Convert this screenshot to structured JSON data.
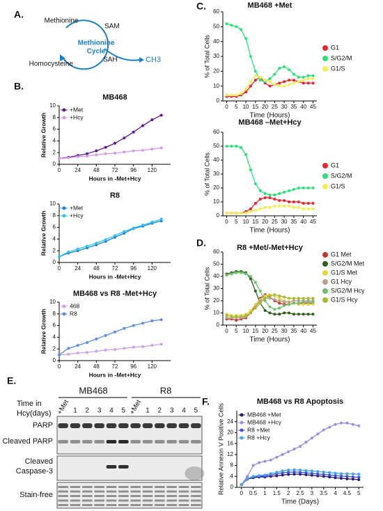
{
  "panel_labels": [
    "A.",
    "B.",
    "C.",
    "D.",
    "E.",
    "F."
  ],
  "diagram": {
    "nodes": [
      "Methionine",
      "SAM",
      "SAH",
      "Homocysteine"
    ],
    "center": [
      "Methionine",
      "Cycle"
    ],
    "output": "CH3"
  },
  "blot": {
    "axis_label": [
      "Time in",
      "Hcy(days)"
    ],
    "groups": [
      "MB468",
      "R8"
    ],
    "lanes": [
      "+Met",
      "1",
      "2",
      "3",
      "4",
      "5",
      "+Met",
      "1",
      "2",
      "3",
      "4",
      "5"
    ],
    "rows": [
      "PARP",
      "Cleaved PARP",
      "Cleaved",
      "Caspase-3",
      "Stain-free"
    ]
  },
  "chart_data": [
    {
      "type": "line",
      "title": "MB468",
      "x_label": "Hours in -Met+Hcy",
      "y_label": "Relative Growth",
      "x": [
        0,
        12,
        24,
        36,
        48,
        60,
        72,
        84,
        96,
        108,
        120,
        132
      ],
      "series": [
        {
          "name": "+Met",
          "color": "#5b1a8b",
          "values": [
            1,
            1.2,
            1.5,
            1.8,
            2.3,
            2.9,
            3.6,
            4.5,
            5.5,
            6.6,
            7.6,
            8.4
          ]
        },
        {
          "name": "+Hcy",
          "color": "#d39be9",
          "values": [
            1,
            1.1,
            1.3,
            1.4,
            1.6,
            1.8,
            1.9,
            2.1,
            2.3,
            2.4,
            2.6,
            2.8
          ]
        }
      ],
      "xlim": [
        0,
        144
      ],
      "ylim": [
        0,
        10
      ],
      "xticks": [
        0,
        24,
        48,
        72,
        96,
        120
      ],
      "yticks": [
        0,
        2,
        4,
        6,
        8,
        10
      ],
      "legend": "upper left"
    },
    {
      "type": "line",
      "title": "R8",
      "x_label": "Hours in -Met+Hcy",
      "y_label": "Relative Growth",
      "x": [
        0,
        12,
        24,
        36,
        48,
        60,
        72,
        84,
        96,
        108,
        120,
        132
      ],
      "series": [
        {
          "name": "+Met",
          "color": "#1e7fd8",
          "values": [
            1,
            1.6,
            2.0,
            2.5,
            3.0,
            3.6,
            4.3,
            5.0,
            5.8,
            6.2,
            6.7,
            7.1
          ]
        },
        {
          "name": "+Hcy",
          "color": "#2cc4f0",
          "values": [
            1,
            1.8,
            2.3,
            2.8,
            3.3,
            3.9,
            4.6,
            5.3,
            5.9,
            6.4,
            6.9,
            7.4
          ]
        }
      ],
      "xlim": [
        0,
        144
      ],
      "ylim": [
        0,
        10
      ],
      "xticks": [
        0,
        24,
        48,
        72,
        96,
        120
      ],
      "yticks": [
        0,
        2,
        4,
        6,
        8,
        10
      ],
      "legend": "upper left"
    },
    {
      "type": "line",
      "title": "MB468 vs R8 -Met+Hcy",
      "x_label": "Hours in -Met+Hcy",
      "y_label": "Relative Growth",
      "x": [
        0,
        12,
        24,
        36,
        48,
        60,
        72,
        84,
        96,
        108,
        120,
        132
      ],
      "series": [
        {
          "name": "468",
          "color": "#c9a3ea",
          "values": [
            1,
            1.1,
            1.3,
            1.4,
            1.6,
            1.8,
            1.9,
            2.1,
            2.3,
            2.4,
            2.6,
            2.8
          ]
        },
        {
          "name": "R8",
          "color": "#5b8ee0",
          "values": [
            1,
            2.1,
            2.6,
            3.1,
            3.7,
            4.3,
            4.9,
            5.5,
            6.0,
            6.4,
            6.8,
            7.0
          ]
        }
      ],
      "xlim": [
        0,
        144
      ],
      "ylim": [
        0,
        10
      ],
      "xticks": [
        0,
        24,
        48,
        72,
        96,
        120
      ],
      "yticks": [
        0,
        2,
        4,
        6,
        8,
        10
      ],
      "legend": "upper left"
    },
    {
      "type": "line",
      "title": "MB468 +Met",
      "x_label": "Time (Hours)",
      "y_label": "% of Total Cells",
      "x": [
        0,
        2.5,
        5,
        7.5,
        10,
        12.5,
        15,
        17.5,
        20,
        22.5,
        25,
        27.5,
        30,
        32.5,
        35,
        37.5,
        40,
        42.5,
        45
      ],
      "series": [
        {
          "name": "G1",
          "color": "#e8242c",
          "values": [
            3,
            3,
            3,
            4,
            6,
            10,
            14,
            16,
            12,
            10,
            11,
            12,
            13,
            14,
            14,
            13,
            12,
            12,
            12
          ]
        },
        {
          "name": "S/G2/M",
          "color": "#2ee07a",
          "values": [
            52,
            51,
            50,
            48,
            42,
            30,
            20,
            14,
            13,
            15,
            18,
            22,
            23,
            21,
            18,
            16,
            16,
            17,
            17
          ]
        },
        {
          "name": "G1/S",
          "color": "#f2ef52",
          "values": [
            4,
            4,
            4,
            5,
            8,
            13,
            17,
            16,
            14,
            13,
            11,
            10,
            10,
            11,
            12,
            13,
            14,
            15,
            15
          ]
        }
      ],
      "xlim": [
        -2,
        47
      ],
      "ylim": [
        0,
        60
      ],
      "xticks": [
        0,
        5,
        10,
        15,
        20,
        25,
        30,
        35,
        40,
        45
      ],
      "yticks": [
        0,
        10,
        20,
        30,
        40,
        50,
        60
      ],
      "legend": "right"
    },
    {
      "type": "line",
      "title": "MB468 –Met+Hcy",
      "x_label": "Time (Hours)",
      "y_label": "% of Total Cells",
      "x": [
        0,
        2.5,
        5,
        7.5,
        10,
        12.5,
        15,
        17.5,
        20,
        22.5,
        25,
        27.5,
        30,
        32.5,
        35,
        37.5,
        40,
        42.5,
        45
      ],
      "series": [
        {
          "name": "G1",
          "color": "#e8242c",
          "values": [
            2,
            2,
            2,
            2,
            3,
            5,
            9,
            12,
            13,
            13,
            12,
            11,
            11,
            10,
            10,
            10,
            9,
            9,
            9
          ]
        },
        {
          "name": "S/G2/M",
          "color": "#2ee07a",
          "values": [
            50,
            50,
            50,
            49,
            44,
            33,
            23,
            18,
            16,
            15,
            15,
            16,
            17,
            18,
            19,
            20,
            20,
            20,
            20
          ]
        },
        {
          "name": "G1/S",
          "color": "#f2ef52",
          "values": [
            2,
            2,
            2,
            2,
            2,
            3,
            4,
            5,
            6,
            6,
            7,
            7,
            7,
            7,
            6,
            6,
            5,
            5,
            5
          ]
        }
      ],
      "xlim": [
        -2,
        47
      ],
      "ylim": [
        0,
        60
      ],
      "xticks": [
        0,
        5,
        10,
        15,
        20,
        25,
        30,
        35,
        40,
        45
      ],
      "yticks": [
        0,
        10,
        20,
        30,
        40,
        50,
        60
      ],
      "legend": "right"
    },
    {
      "type": "line",
      "title": "R8 +Met/-Met+Hcy",
      "x_label": "Time (Hours)",
      "y_label": "% of Total Cells",
      "x": [
        0,
        2.5,
        5,
        7.5,
        10,
        12.5,
        15,
        17.5,
        20,
        22.5,
        25,
        27.5,
        30,
        32.5,
        35,
        37.5,
        40,
        42.5,
        45
      ],
      "series": [
        {
          "name": "G1 Met",
          "color": "#c0392b",
          "values": [
            5,
            5,
            4,
            5,
            6,
            10,
            16,
            22,
            25,
            23,
            20,
            18,
            17,
            17,
            18,
            18,
            18,
            18,
            18
          ]
        },
        {
          "name": "S/G2/M Met",
          "color": "#2e5e1a",
          "values": [
            42,
            43,
            44,
            44,
            43,
            38,
            28,
            18,
            12,
            10,
            9,
            9,
            10,
            10,
            9,
            9,
            9,
            9,
            9
          ]
        },
        {
          "name": "G1/S Met",
          "color": "#e3d63e",
          "values": [
            9,
            8,
            8,
            8,
            9,
            12,
            17,
            21,
            24,
            25,
            24,
            22,
            20,
            19,
            18,
            17,
            17,
            17,
            17
          ]
        },
        {
          "name": "G1 Hcy",
          "color": "#b9a08e",
          "values": [
            6,
            6,
            6,
            6,
            7,
            10,
            15,
            20,
            22,
            22,
            21,
            20,
            19,
            19,
            20,
            20,
            20,
            20,
            20
          ]
        },
        {
          "name": "S/G2/M Hcy",
          "color": "#6fbf6f",
          "values": [
            41,
            42,
            43,
            43,
            42,
            40,
            35,
            28,
            20,
            15,
            13,
            14,
            16,
            17,
            18,
            18,
            19,
            19,
            19
          ]
        },
        {
          "name": "G1/S Hcy",
          "color": "#a8b830",
          "values": [
            8,
            7,
            7,
            7,
            8,
            10,
            14,
            18,
            22,
            24,
            25,
            24,
            23,
            22,
            22,
            22,
            22,
            22,
            22
          ]
        }
      ],
      "xlim": [
        -2,
        47
      ],
      "ylim": [
        0,
        60
      ],
      "xticks": [
        0,
        5,
        10,
        15,
        20,
        25,
        30,
        35,
        40,
        45
      ],
      "yticks": [
        0,
        10,
        20,
        30,
        40,
        50,
        60
      ],
      "legend": "right"
    },
    {
      "type": "line",
      "title": "MB468 vs R8 Apoptosis",
      "x_label": "Time (Days)",
      "y_label": "Relative Annexin V Positive Cells",
      "x": [
        0,
        0.25,
        0.5,
        0.75,
        1,
        1.25,
        1.5,
        1.75,
        2,
        2.25,
        2.5,
        2.75,
        3,
        3.25,
        3.5,
        3.75,
        4,
        4.25,
        4.5,
        4.75,
        5
      ],
      "series": [
        {
          "name": "MB468 +Met",
          "color": "#2a1a6e",
          "values": [
            1,
            3,
            3.5,
            3.8,
            3.8,
            4,
            4.2,
            4.5,
            4.7,
            4.8,
            4.8,
            4.6,
            4.4,
            4.2,
            4,
            3.8,
            3.5,
            3.3,
            3.1,
            3,
            2.8
          ]
        },
        {
          "name": "MB468 +Hcy",
          "color": "#9a8ee0",
          "values": [
            1,
            4,
            8,
            9,
            9.5,
            10,
            11,
            12,
            13,
            14,
            15,
            16.5,
            18,
            19.5,
            21,
            22,
            23,
            23.5,
            23.5,
            23,
            22.5
          ]
        },
        {
          "name": "R8 +Met",
          "color": "#3b4fe0",
          "values": [
            1,
            3,
            3.8,
            4,
            4.2,
            4.5,
            5,
            5.3,
            5.5,
            5.6,
            5.5,
            5.3,
            5.1,
            4.9,
            4.7,
            4.5,
            4.3,
            4.1,
            4,
            3.8,
            3.7
          ]
        },
        {
          "name": "R8 +Hcy",
          "color": "#4aa0e8",
          "values": [
            1,
            3.2,
            4,
            4.3,
            4.5,
            5,
            5.5,
            6,
            6.3,
            6.4,
            6.3,
            6.1,
            6,
            5.8,
            5.6,
            5.4,
            5.2,
            5,
            5,
            4.9,
            4.8
          ]
        }
      ],
      "xlim": [
        -0.2,
        5.2
      ],
      "ylim": [
        0,
        28
      ],
      "xticks": [
        0,
        0.5,
        1,
        1.5,
        2,
        2.5,
        3,
        3.5,
        4,
        4.5,
        5
      ],
      "yticks": [
        0,
        4,
        8,
        12,
        16,
        20,
        24
      ],
      "legend": "upper left"
    }
  ]
}
